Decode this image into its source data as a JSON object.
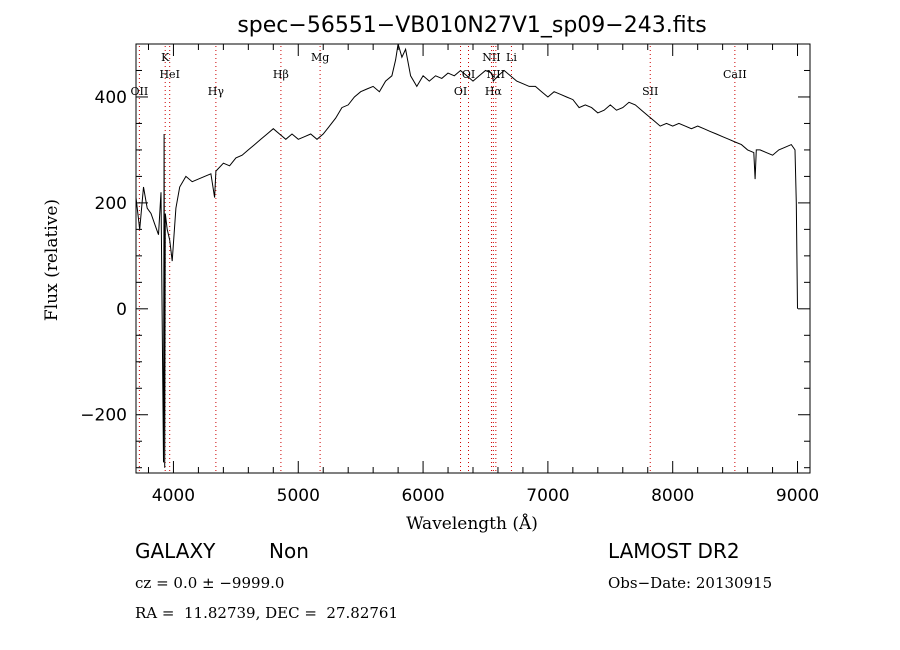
{
  "chart_data": {
    "type": "line",
    "title": "spec−56551−VB010N27V1_sp09−243.fits",
    "xlabel": "Wavelength (Å)",
    "ylabel": "Flux (relative)",
    "xlim": [
      3700,
      9100
    ],
    "ylim": [
      -310,
      500
    ],
    "xticks": [
      4000,
      5000,
      6000,
      7000,
      8000,
      9000
    ],
    "yticks": [
      -200,
      0,
      200,
      400
    ],
    "x_tick_labels": [
      "4000",
      "5000",
      "6000",
      "7000",
      "8000",
      "9000"
    ],
    "y_tick_labels": [
      "−200",
      "0",
      "200",
      "400"
    ],
    "grid": false,
    "spectrum": [
      [
        3700,
        210
      ],
      [
        3730,
        150
      ],
      [
        3760,
        230
      ],
      [
        3790,
        190
      ],
      [
        3820,
        180
      ],
      [
        3850,
        160
      ],
      [
        3880,
        140
      ],
      [
        3900,
        220
      ],
      [
        3920,
        -290
      ],
      [
        3925,
        330
      ],
      [
        3930,
        -300
      ],
      [
        3935,
        180
      ],
      [
        3950,
        150
      ],
      [
        3970,
        130
      ],
      [
        3990,
        90
      ],
      [
        4020,
        190
      ],
      [
        4050,
        230
      ],
      [
        4100,
        250
      ],
      [
        4150,
        240
      ],
      [
        4200,
        245
      ],
      [
        4250,
        250
      ],
      [
        4300,
        255
      ],
      [
        4330,
        210
      ],
      [
        4340,
        260
      ],
      [
        4400,
        275
      ],
      [
        4450,
        270
      ],
      [
        4500,
        285
      ],
      [
        4550,
        290
      ],
      [
        4600,
        300
      ],
      [
        4650,
        310
      ],
      [
        4700,
        320
      ],
      [
        4750,
        330
      ],
      [
        4800,
        340
      ],
      [
        4850,
        330
      ],
      [
        4900,
        320
      ],
      [
        4950,
        330
      ],
      [
        5000,
        320
      ],
      [
        5050,
        325
      ],
      [
        5100,
        330
      ],
      [
        5150,
        320
      ],
      [
        5200,
        330
      ],
      [
        5250,
        345
      ],
      [
        5300,
        360
      ],
      [
        5350,
        380
      ],
      [
        5400,
        385
      ],
      [
        5450,
        400
      ],
      [
        5500,
        410
      ],
      [
        5550,
        415
      ],
      [
        5600,
        420
      ],
      [
        5650,
        410
      ],
      [
        5700,
        430
      ],
      [
        5750,
        440
      ],
      [
        5780,
        470
      ],
      [
        5800,
        500
      ],
      [
        5830,
        475
      ],
      [
        5860,
        490
      ],
      [
        5900,
        440
      ],
      [
        5950,
        420
      ],
      [
        6000,
        440
      ],
      [
        6050,
        430
      ],
      [
        6100,
        440
      ],
      [
        6150,
        435
      ],
      [
        6200,
        445
      ],
      [
        6250,
        440
      ],
      [
        6300,
        450
      ],
      [
        6350,
        440
      ],
      [
        6400,
        430
      ],
      [
        6450,
        440
      ],
      [
        6500,
        450
      ],
      [
        6550,
        445
      ],
      [
        6563,
        430
      ],
      [
        6600,
        440
      ],
      [
        6650,
        450
      ],
      [
        6700,
        440
      ],
      [
        6750,
        430
      ],
      [
        6800,
        425
      ],
      [
        6850,
        420
      ],
      [
        6900,
        420
      ],
      [
        6950,
        410
      ],
      [
        7000,
        400
      ],
      [
        7050,
        410
      ],
      [
        7100,
        405
      ],
      [
        7150,
        400
      ],
      [
        7200,
        395
      ],
      [
        7250,
        380
      ],
      [
        7300,
        385
      ],
      [
        7350,
        380
      ],
      [
        7400,
        370
      ],
      [
        7450,
        375
      ],
      [
        7500,
        385
      ],
      [
        7550,
        375
      ],
      [
        7600,
        380
      ],
      [
        7650,
        390
      ],
      [
        7700,
        385
      ],
      [
        7750,
        375
      ],
      [
        7800,
        365
      ],
      [
        7850,
        355
      ],
      [
        7900,
        345
      ],
      [
        7950,
        350
      ],
      [
        8000,
        345
      ],
      [
        8050,
        350
      ],
      [
        8100,
        345
      ],
      [
        8150,
        340
      ],
      [
        8200,
        345
      ],
      [
        8250,
        340
      ],
      [
        8300,
        335
      ],
      [
        8350,
        330
      ],
      [
        8400,
        325
      ],
      [
        8450,
        320
      ],
      [
        8500,
        315
      ],
      [
        8550,
        310
      ],
      [
        8600,
        300
      ],
      [
        8650,
        295
      ],
      [
        8660,
        245
      ],
      [
        8670,
        300
      ],
      [
        8700,
        300
      ],
      [
        8750,
        295
      ],
      [
        8800,
        290
      ],
      [
        8850,
        300
      ],
      [
        8900,
        305
      ],
      [
        8950,
        310
      ],
      [
        8980,
        300
      ],
      [
        8990,
        200
      ],
      [
        9000,
        0
      ]
    ],
    "lines": [
      {
        "label": "OII",
        "x": 3727,
        "row": 3
      },
      {
        "label": "K",
        "x": 3934,
        "row": 1
      },
      {
        "label": "HeI",
        "x": 3970,
        "row": 2
      },
      {
        "label": "Hγ",
        "x": 4340,
        "row": 3
      },
      {
        "label": "Hβ",
        "x": 4861,
        "row": 2
      },
      {
        "label": "Mg",
        "x": 5175,
        "row": 1
      },
      {
        "label": "OI",
        "x": 6300,
        "row": 3
      },
      {
        "label": "OI",
        "x": 6364,
        "row": 2
      },
      {
        "label": "NII",
        "x": 6548,
        "row": 1
      },
      {
        "label": "Hα",
        "x": 6563,
        "row": 3
      },
      {
        "label": "NII",
        "x": 6583,
        "row": 2
      },
      {
        "label": "Li",
        "x": 6708,
        "row": 1
      },
      {
        "label": "SII",
        "x": 7820,
        "row": 3
      },
      {
        "label": "CaII",
        "x": 8498,
        "row": 2
      }
    ]
  },
  "info": {
    "class_label": "GALAXY",
    "subclass_label": "Non",
    "survey_label": "LAMOST DR2",
    "cz_text": "cz = 0.0 ± −9999.0",
    "obs_date_text": "Obs−Date: 20130915",
    "radec_text": "RA =  11.82739, DEC =  27.82761"
  },
  "colors": {
    "axes": "#000000",
    "spectrum": "#000000",
    "line_markers": "#cc0000"
  }
}
